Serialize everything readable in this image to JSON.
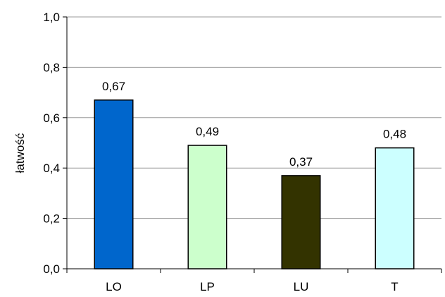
{
  "chart_data": {
    "type": "bar",
    "categories": [
      "LO",
      "LP",
      "LU",
      "T"
    ],
    "values": [
      0.67,
      0.49,
      0.37,
      0.48
    ],
    "data_labels": [
      "0,67",
      "0,49",
      "0,37",
      "0,48"
    ],
    "bar_colors": [
      "#0066cc",
      "#ccffcc",
      "#333300",
      "#ccffff"
    ],
    "title": "",
    "xlabel": "",
    "ylabel": "łatwość",
    "ylim": [
      0,
      1.0
    ],
    "yticks": [
      0,
      0.2,
      0.4,
      0.6,
      0.8,
      1.0
    ],
    "ytick_labels": [
      "0,0",
      "0,2",
      "0,4",
      "0,6",
      "0,8",
      "1,0"
    ],
    "grid": true,
    "legend": "none"
  }
}
